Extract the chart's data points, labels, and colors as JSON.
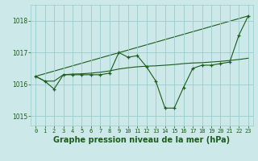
{
  "title": "Graphe pression niveau de la mer (hPa)",
  "background_color": "#cce8e8",
  "grid_color": "#99cccc",
  "line_color": "#1a5c1a",
  "marker_color": "#1a5c1a",
  "text_color": "#1a5c1a",
  "xlim": [
    -0.5,
    23.5
  ],
  "ylim": [
    1014.7,
    1018.5
  ],
  "yticks": [
    1015,
    1016,
    1017,
    1018
  ],
  "xticks": [
    0,
    1,
    2,
    3,
    4,
    5,
    6,
    7,
    8,
    9,
    10,
    11,
    12,
    13,
    14,
    15,
    16,
    17,
    18,
    19,
    20,
    21,
    22,
    23
  ],
  "series_jagged": {
    "x": [
      0,
      1,
      2,
      3,
      4,
      5,
      6,
      7,
      8,
      9,
      10,
      11,
      12,
      13,
      14,
      15,
      16,
      17,
      18,
      19,
      20,
      21,
      22,
      23
    ],
    "y": [
      1016.25,
      1016.1,
      1015.85,
      1016.3,
      1016.3,
      1016.3,
      1016.3,
      1016.3,
      1016.35,
      1017.0,
      1016.85,
      1016.9,
      1016.55,
      1016.1,
      1015.25,
      1015.25,
      1015.9,
      1016.5,
      1016.6,
      1016.6,
      1016.65,
      1016.7,
      1017.55,
      1018.15
    ]
  },
  "series_smooth": {
    "x": [
      0,
      1,
      2,
      3,
      4,
      5,
      6,
      7,
      8,
      9,
      10,
      11,
      12,
      13,
      14,
      15,
      16,
      17,
      18,
      19,
      20,
      21,
      22,
      23
    ],
    "y": [
      1016.25,
      1016.1,
      1016.1,
      1016.3,
      1016.32,
      1016.33,
      1016.35,
      1016.38,
      1016.42,
      1016.48,
      1016.52,
      1016.55,
      1016.57,
      1016.58,
      1016.6,
      1016.62,
      1016.65,
      1016.67,
      1016.68,
      1016.7,
      1016.72,
      1016.75,
      1016.78,
      1016.82
    ]
  },
  "series_linear": {
    "x": [
      0,
      23
    ],
    "y": [
      1016.25,
      1018.15
    ]
  },
  "title_fontsize": 7,
  "tick_fontsize": 5,
  "figsize": [
    3.2,
    2.0
  ],
  "dpi": 100
}
